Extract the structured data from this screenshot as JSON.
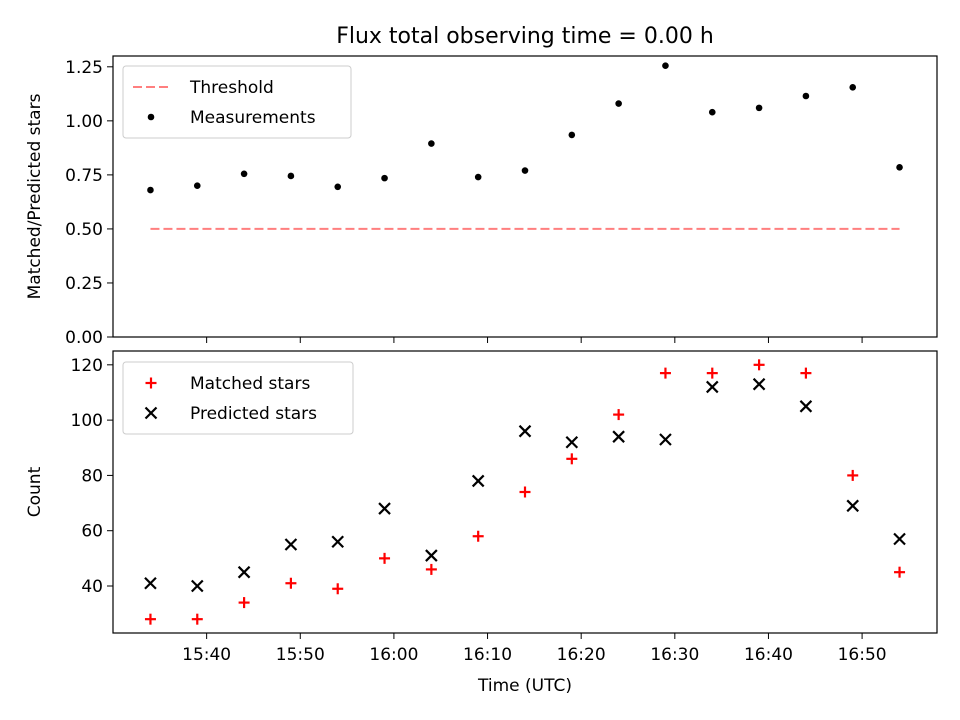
{
  "title": "Flux total observing time = 0.00 h",
  "chart_data": [
    {
      "type": "scatter",
      "ylabel": "Matched/Predicted stars",
      "ylim": [
        0,
        1.3
      ],
      "yticks": [
        "0.00",
        "0.25",
        "0.50",
        "0.75",
        "1.00",
        "1.25"
      ],
      "ytick_values": [
        0,
        0.25,
        0.5,
        0.75,
        1.0,
        1.25
      ],
      "legend_position": "top-left",
      "x": [
        "15:34",
        "15:39",
        "15:44",
        "15:49",
        "15:54",
        "15:59",
        "16:04",
        "16:09",
        "16:14",
        "16:19",
        "16:24",
        "16:29",
        "16:34",
        "16:39",
        "16:44",
        "16:49",
        "16:54"
      ],
      "threshold": {
        "name": "Threshold",
        "value": 0.5,
        "color": "#ff7f7f",
        "style": "dashed"
      },
      "series": [
        {
          "name": "Measurements",
          "color": "#000000",
          "marker": "dot",
          "values": [
            0.68,
            0.7,
            0.755,
            0.745,
            0.695,
            0.735,
            0.895,
            0.74,
            0.77,
            0.935,
            1.08,
            1.255,
            1.04,
            1.06,
            1.115,
            1.155,
            0.785
          ]
        }
      ]
    },
    {
      "type": "scatter",
      "ylabel": "Count",
      "xlabel": "Time (UTC)",
      "ylim": [
        23,
        125
      ],
      "yticks": [
        "40",
        "60",
        "80",
        "100",
        "120"
      ],
      "ytick_values": [
        40,
        60,
        80,
        100,
        120
      ],
      "xticks": [
        "15:40",
        "15:50",
        "16:00",
        "16:10",
        "16:20",
        "16:30",
        "16:40",
        "16:50"
      ],
      "xlim": [
        "15:30",
        "16:58"
      ],
      "legend_position": "top-left",
      "x": [
        "15:34",
        "15:39",
        "15:44",
        "15:49",
        "15:54",
        "15:59",
        "16:04",
        "16:09",
        "16:14",
        "16:19",
        "16:24",
        "16:29",
        "16:34",
        "16:39",
        "16:44",
        "16:49",
        "16:54"
      ],
      "series": [
        {
          "name": "Matched stars",
          "color": "#ff0000",
          "marker": "plus",
          "values": [
            28,
            28,
            34,
            41,
            39,
            50,
            46,
            58,
            74,
            86,
            102,
            117,
            117,
            120,
            117,
            80,
            45
          ]
        },
        {
          "name": "Predicted stars",
          "color": "#000000",
          "marker": "x",
          "values": [
            41,
            40,
            45,
            55,
            56,
            68,
            51,
            78,
            96,
            92,
            94,
            93,
            112,
            113,
            105,
            69,
            57
          ]
        }
      ]
    }
  ]
}
